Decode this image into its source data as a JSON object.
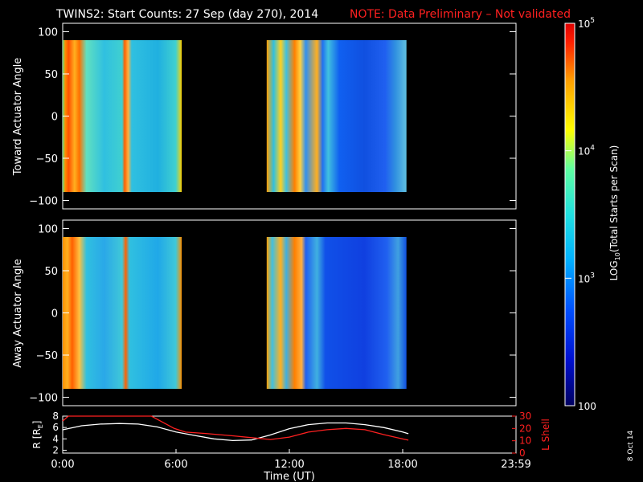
{
  "title": {
    "main": "TWINS2: Start Counts: 27 Sep (day 270), 2014",
    "note": "NOTE: Data Preliminary – Not validated"
  },
  "side_stamp": "8 Oct 14",
  "colorbar": {
    "label_prefix": "LOG",
    "label_sub": "10",
    "label_suffix": "(Total Starts per Scan)",
    "ticks": [
      {
        "base": "10",
        "exp": "5",
        "value": 100000
      },
      {
        "base": "10",
        "exp": "4",
        "value": 10000
      },
      {
        "base": "10",
        "exp": "3",
        "value": 1000
      },
      {
        "base": "100",
        "exp": "",
        "value": 100
      }
    ],
    "range": [
      100,
      100000
    ],
    "scale": "log"
  },
  "chart_data": [
    {
      "type": "heatmap",
      "ylabel": "Toward Actuator Angle",
      "ylim": [
        -110,
        110
      ],
      "yticks": [
        "100",
        "50",
        "0",
        "−50",
        "−100"
      ],
      "ytick_values": [
        100,
        50,
        0,
        -50,
        -100
      ],
      "xlim_hours": [
        0,
        24
      ],
      "data_intervals_hours": [
        [
          0.0,
          6.3
        ],
        [
          10.8,
          18.2
        ]
      ],
      "angle_range": [
        -90,
        90
      ]
    },
    {
      "type": "heatmap",
      "ylabel": "Away Actuator Angle",
      "ylim": [
        -110,
        110
      ],
      "yticks": [
        "100",
        "50",
        "0",
        "−50",
        "−100"
      ],
      "ytick_values": [
        100,
        50,
        0,
        -50,
        -100
      ],
      "xlim_hours": [
        0,
        24
      ],
      "data_intervals_hours": [
        [
          0.0,
          6.3
        ],
        [
          10.8,
          18.2
        ]
      ],
      "angle_range": [
        -90,
        90
      ]
    },
    {
      "type": "line",
      "xlabel": "Time (UT)",
      "xticks": [
        "0:00",
        "6:00",
        "12:00",
        "18:00",
        "23:59"
      ],
      "xtick_hours": [
        0,
        6,
        12,
        18,
        24
      ],
      "left_axis": {
        "label": "R [R",
        "label_sub": "E",
        "label_end": "]",
        "ticks": [
          "8",
          "6",
          "4",
          "2"
        ],
        "tick_values": [
          8,
          6,
          4,
          2
        ],
        "ylim": [
          1.5,
          8
        ]
      },
      "right_axis": {
        "label": "L Shell",
        "ticks": [
          "30",
          "20",
          "10",
          "0"
        ],
        "tick_values": [
          30,
          20,
          10,
          0
        ],
        "ylim": [
          0,
          30
        ]
      },
      "series": [
        {
          "axis": "left",
          "color": "#ffffff",
          "x": [
            0.0,
            1.0,
            2.0,
            3.0,
            4.0,
            5.0,
            6.0,
            7.0,
            8.0,
            9.0,
            10.0,
            11.0,
            12.0,
            13.0,
            14.0,
            15.0,
            16.0,
            17.0,
            18.0,
            18.3
          ],
          "y": [
            5.6,
            6.3,
            6.6,
            6.7,
            6.6,
            6.1,
            5.2,
            4.6,
            4.0,
            3.7,
            3.8,
            4.7,
            5.8,
            6.5,
            6.8,
            6.8,
            6.5,
            6.0,
            5.2,
            4.9
          ]
        },
        {
          "axis": "right",
          "color": "#ff2020",
          "x": [
            0.0,
            0.3,
            4.7,
            5.3,
            5.9,
            6.5,
            7.5,
            9.0,
            10.0,
            11.0,
            12.0,
            13.0,
            14.0,
            15.0,
            16.0,
            17.0,
            18.0,
            18.3
          ],
          "y": [
            26.0,
            30.0,
            30.0,
            25.0,
            20.0,
            17.0,
            16.0,
            14.0,
            12.5,
            11.0,
            13.0,
            17.0,
            19.0,
            20.0,
            19.0,
            15.0,
            11.5,
            10.5
          ]
        }
      ]
    }
  ]
}
